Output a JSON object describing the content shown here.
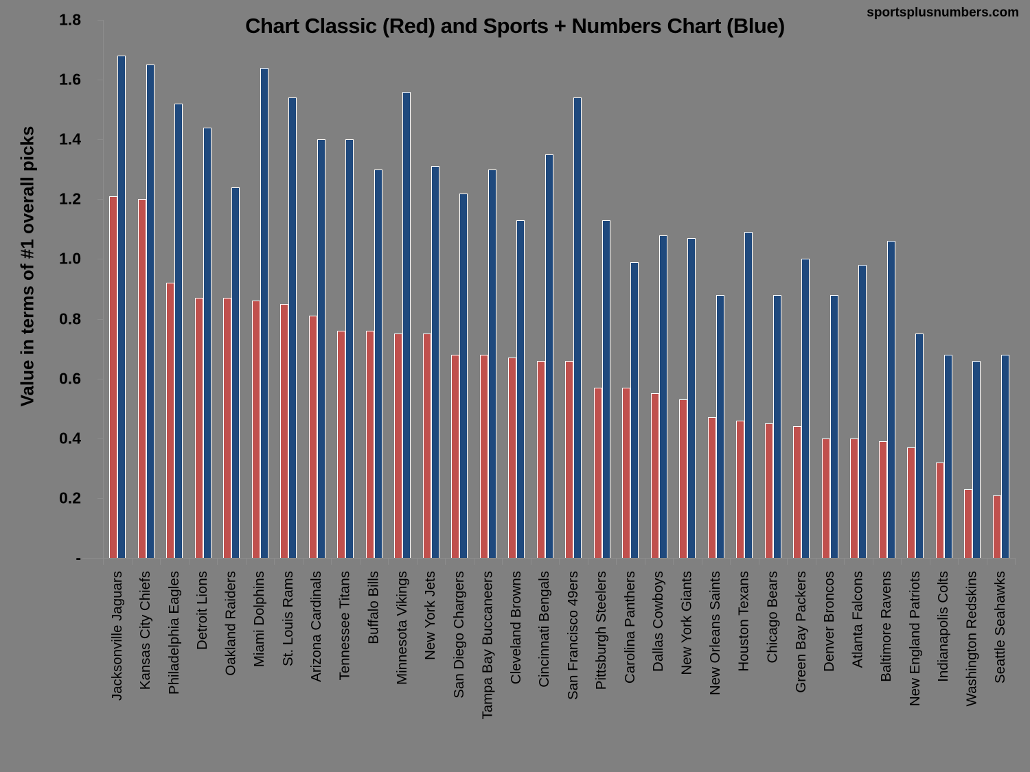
{
  "header": {
    "title": "Chart Classic (Red) and Sports + Numbers Chart (Blue)",
    "watermark": "sportsplusnumbers.com"
  },
  "axis": {
    "ylabel": "Value in terms of #1 overall picks",
    "yticks": [
      "-",
      "0.2",
      "0.4",
      "0.6",
      "0.8",
      "1.0",
      "1.2",
      "1.4",
      "1.6",
      "1.8"
    ]
  },
  "colors": {
    "background": "#808080",
    "red": "#C0504D",
    "blue": "#1F497D"
  },
  "chart_data": {
    "type": "bar",
    "title": "Chart Classic (Red) and Sports + Numbers Chart (Blue)",
    "xlabel": "",
    "ylabel": "Value in terms of #1 overall picks",
    "ylim": [
      0,
      1.8
    ],
    "ytick_labels": [
      "-",
      "0.2",
      "0.4",
      "0.6",
      "0.8",
      "1.0",
      "1.2",
      "1.4",
      "1.6",
      "1.8"
    ],
    "grid": false,
    "legend": "none (series identified in title)",
    "categories": [
      "Jacksonville Jaguars",
      "Kansas City Chiefs",
      "Philadelphia Eagles",
      "Detroit Lions",
      "Oakland Raiders",
      "Miami Dolphins",
      "St. Louis Rams",
      "Arizona Cardinals",
      "Tennessee Titans",
      "Buffalo Bills",
      "Minnesota Vikings",
      "New York Jets",
      "San Diego Chargers",
      "Tampa Bay Buccaneers",
      "Cleveland Browns",
      "Cincinnati Bengals",
      "San Francisco 49ers",
      "Pittsburgh Steelers",
      "Carolina Panthers",
      "Dallas Cowboys",
      "New York Giants",
      "New Orleans Saints",
      "Houston Texans",
      "Chicago Bears",
      "Green Bay Packers",
      "Denver Broncos",
      "Atlanta Falcons",
      "Baltimore Ravens",
      "New England Patriots",
      "Indianapolis Colts",
      "Washington Redskins",
      "Seattle Seahawks"
    ],
    "series": [
      {
        "name": "Chart Classic (Red)",
        "color": "#C0504D",
        "values": [
          1.21,
          1.2,
          0.92,
          0.87,
          0.87,
          0.86,
          0.85,
          0.81,
          0.76,
          0.76,
          0.75,
          0.75,
          0.68,
          0.68,
          0.67,
          0.66,
          0.66,
          0.57,
          0.57,
          0.55,
          0.53,
          0.47,
          0.46,
          0.45,
          0.44,
          0.4,
          0.4,
          0.39,
          0.37,
          0.32,
          0.23,
          0.21
        ]
      },
      {
        "name": "Sports + Numbers Chart (Blue)",
        "color": "#1F497D",
        "values": [
          1.68,
          1.65,
          1.52,
          1.44,
          1.24,
          1.64,
          1.54,
          1.4,
          1.4,
          1.3,
          1.56,
          1.31,
          1.22,
          1.3,
          1.13,
          1.35,
          1.54,
          1.13,
          0.99,
          1.08,
          1.07,
          0.88,
          1.09,
          0.88,
          1.0,
          0.88,
          0.98,
          1.06,
          0.75,
          0.68,
          0.66,
          0.68
        ]
      }
    ]
  }
}
